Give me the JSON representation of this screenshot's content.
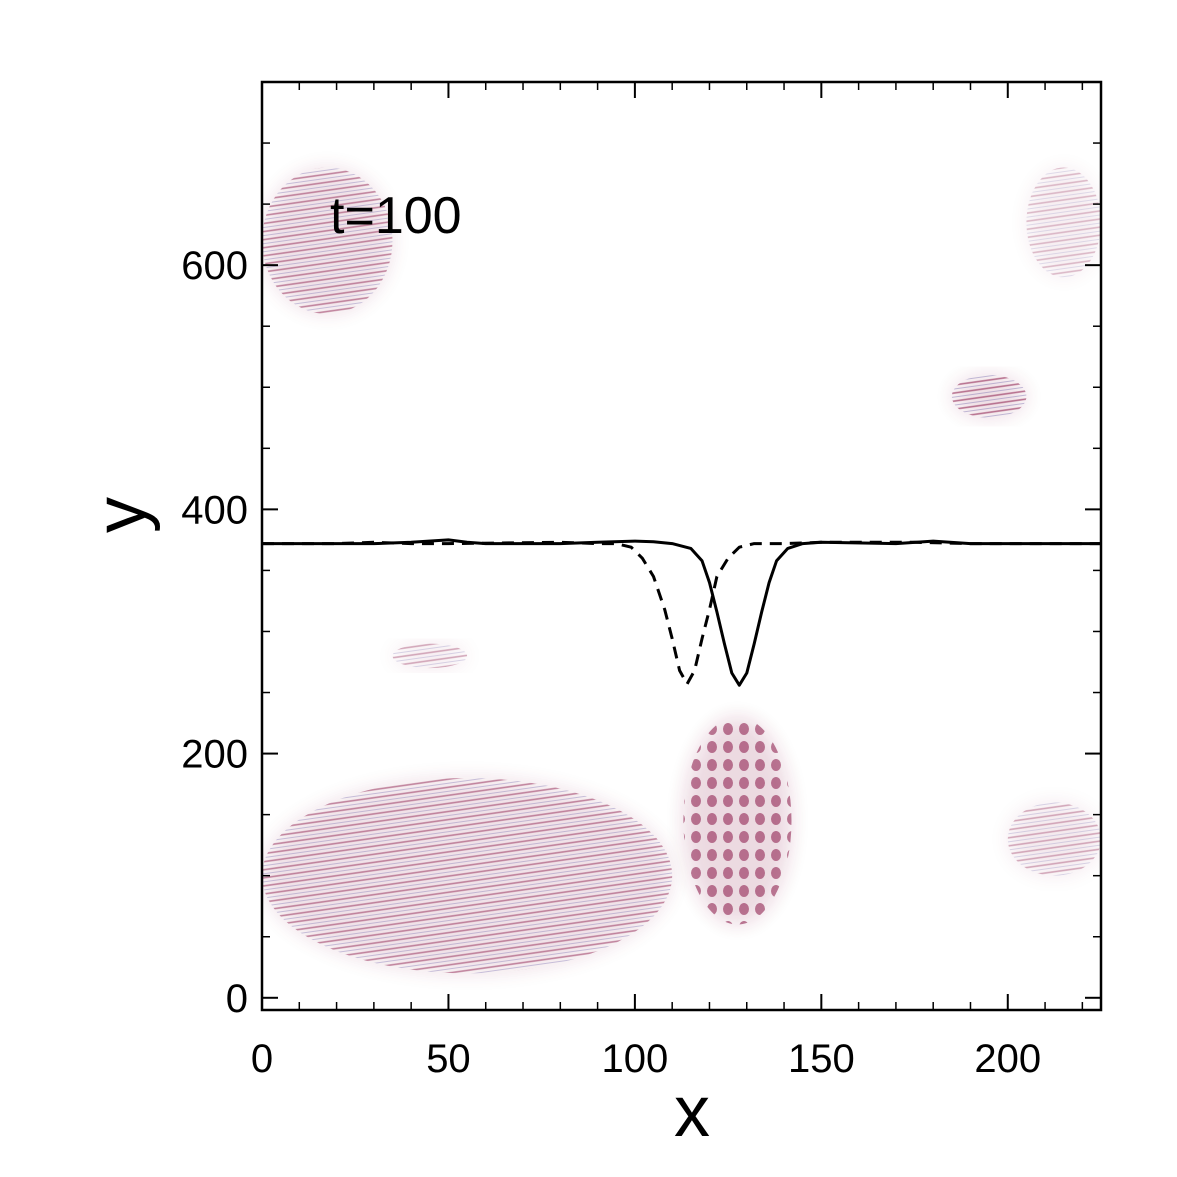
{
  "chart_data": {
    "type": "heatmap",
    "annotation": "t=100",
    "xlabel": "x",
    "ylabel": "y",
    "xlim": [
      0,
      225
    ],
    "ylim": [
      -10,
      750
    ],
    "xticks": [
      0,
      50,
      100,
      150,
      200
    ],
    "xtick_labels": [
      "0",
      "50",
      "100",
      "150",
      "200"
    ],
    "yticks": [
      0,
      200,
      400,
      600
    ],
    "ytick_labels": [
      "0",
      "200",
      "400",
      "600"
    ],
    "grid": false,
    "legend": "none",
    "colors": {
      "intensity": "#8b1a4a",
      "ripple_blue": "#5a4a9a",
      "lines": "#000000"
    },
    "series": [
      {
        "style": "solid",
        "points": [
          [
            0,
            372
          ],
          [
            20,
            372
          ],
          [
            30,
            372
          ],
          [
            40,
            373
          ],
          [
            50,
            375
          ],
          [
            55,
            373
          ],
          [
            60,
            372
          ],
          [
            80,
            372
          ],
          [
            90,
            373
          ],
          [
            100,
            374
          ],
          [
            105,
            373.5
          ],
          [
            110,
            372
          ],
          [
            115,
            368
          ],
          [
            118,
            358
          ],
          [
            120,
            340
          ],
          [
            122,
            316
          ],
          [
            124,
            290
          ],
          [
            126,
            266
          ],
          [
            128,
            256
          ],
          [
            130,
            266
          ],
          [
            132,
            290
          ],
          [
            134,
            316
          ],
          [
            136,
            340
          ],
          [
            138,
            358
          ],
          [
            141,
            368
          ],
          [
            145,
            372
          ],
          [
            150,
            373
          ],
          [
            170,
            372
          ],
          [
            180,
            374
          ],
          [
            190,
            372
          ],
          [
            225,
            372
          ]
        ]
      },
      {
        "style": "dashed",
        "points": [
          [
            0,
            372
          ],
          [
            20,
            372
          ],
          [
            30,
            373
          ],
          [
            40,
            372
          ],
          [
            50,
            372
          ],
          [
            80,
            373
          ],
          [
            90,
            372
          ],
          [
            95,
            372
          ],
          [
            99,
            369
          ],
          [
            102,
            360
          ],
          [
            105,
            345
          ],
          [
            108,
            318
          ],
          [
            110,
            294
          ],
          [
            112,
            268
          ],
          [
            114,
            257
          ],
          [
            116,
            268
          ],
          [
            118,
            294
          ],
          [
            120,
            318
          ],
          [
            122,
            345
          ],
          [
            125,
            360
          ],
          [
            128,
            369
          ],
          [
            132,
            372
          ],
          [
            140,
            372
          ],
          [
            150,
            373
          ],
          [
            175,
            373
          ],
          [
            190,
            372
          ],
          [
            225,
            372
          ]
        ]
      }
    ],
    "intensity_regions": [
      {
        "x": [
          0,
          110
        ],
        "y": [
          20,
          180
        ],
        "level": 0.7
      },
      {
        "x": [
          0,
          35
        ],
        "y": [
          560,
          680
        ],
        "level": 0.7
      },
      {
        "x": [
          185,
          205
        ],
        "y": [
          475,
          510
        ],
        "level": 0.8
      },
      {
        "x": [
          35,
          55
        ],
        "y": [
          270,
          290
        ],
        "level": 0.5
      },
      {
        "x": [
          113,
          142
        ],
        "y": [
          60,
          230
        ],
        "level": 0.9
      },
      {
        "x": [
          200,
          225
        ],
        "y": [
          100,
          160
        ],
        "level": 0.5
      },
      {
        "x": [
          205,
          225
        ],
        "y": [
          590,
          680
        ],
        "level": 0.4
      }
    ]
  }
}
